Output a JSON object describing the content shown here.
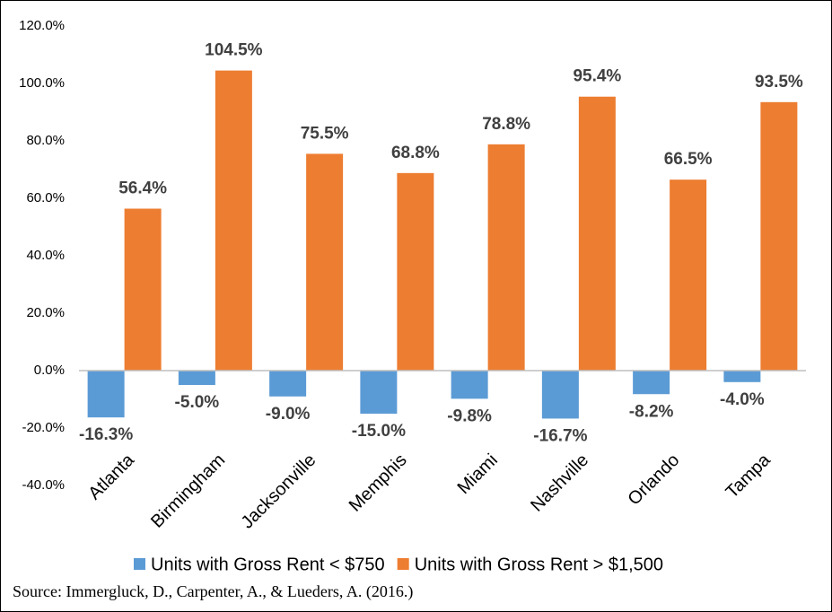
{
  "chart_data": {
    "type": "bar",
    "categories": [
      "Atlanta",
      "Birmingham",
      "Jacksonville",
      "Memphis",
      "Miami",
      "Nashville",
      "Orlando",
      "Tampa"
    ],
    "series": [
      {
        "name": "Units with Gross Rent < $750",
        "color": "#5b9bd5",
        "values": [
          -16.3,
          -5.0,
          -9.0,
          -15.0,
          -9.8,
          -16.7,
          -8.2,
          -4.0
        ],
        "value_labels": [
          "-16.3%",
          "-5.0%",
          "-9.0%",
          "-15.0%",
          "-9.8%",
          "-16.7%",
          "-8.2%",
          "-4.0%"
        ]
      },
      {
        "name": "Units with Gross Rent > $1,500",
        "color": "#ed7d31",
        "values": [
          56.4,
          104.5,
          75.5,
          68.8,
          78.8,
          95.4,
          66.5,
          93.5
        ],
        "value_labels": [
          "56.4%",
          "104.5%",
          "75.5%",
          "68.8%",
          "78.8%",
          "95.4%",
          "66.5%",
          "93.5%"
        ]
      }
    ],
    "ylim": [
      -40,
      120
    ],
    "yticks": [
      {
        "value": -40,
        "label": "-40.0%"
      },
      {
        "value": -20,
        "label": "-20.0%"
      },
      {
        "value": 0,
        "label": "0.0%"
      },
      {
        "value": 20,
        "label": "20.0%"
      },
      {
        "value": 40,
        "label": "40.0%"
      },
      {
        "value": 60,
        "label": "60.0%"
      },
      {
        "value": 80,
        "label": "80.0%"
      },
      {
        "value": 100,
        "label": "100.0%"
      },
      {
        "value": 120,
        "label": "120.0%"
      }
    ],
    "legend": "bottom",
    "source": "Source: Immergluck, D., Carpenter, A., & Lueders, A. (2016.)"
  }
}
